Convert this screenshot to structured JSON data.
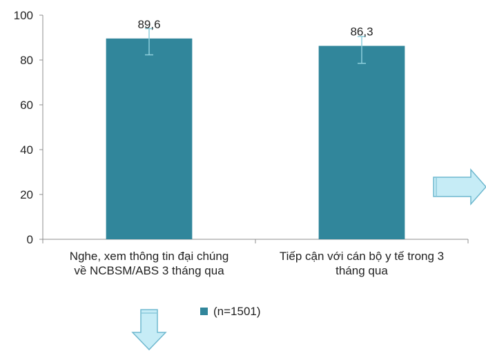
{
  "chart_data": {
    "type": "bar",
    "categories": [
      [
        "Nghe, xem thông tin đại chúng",
        "về NCBSM/ABS 3 tháng qua"
      ],
      [
        "Tiếp cận với cán bộ y tế trong 3",
        "tháng qua"
      ]
    ],
    "series": [
      {
        "name": "(n=1501)",
        "values": [
          89.6,
          86.3
        ],
        "data_labels": [
          "89,6",
          "86,3"
        ],
        "error_low": [
          82.3,
          78.5
        ],
        "error_high": [
          94.0,
          90.5
        ]
      }
    ],
    "ylim": [
      0,
      100
    ],
    "yticks": [
      0,
      20,
      40,
      60,
      80,
      100
    ],
    "grid": false,
    "legend_position": "bottom",
    "colors": {
      "bar": "#31869b",
      "error_bar": "#8ecfdc",
      "arrow_fill": "#c6ecf6",
      "arrow_stroke": "#6fb8cf"
    }
  },
  "decorations": {
    "arrows": [
      {
        "name": "right-arrow",
        "direction": "right"
      },
      {
        "name": "down-arrow",
        "direction": "down"
      }
    ]
  }
}
